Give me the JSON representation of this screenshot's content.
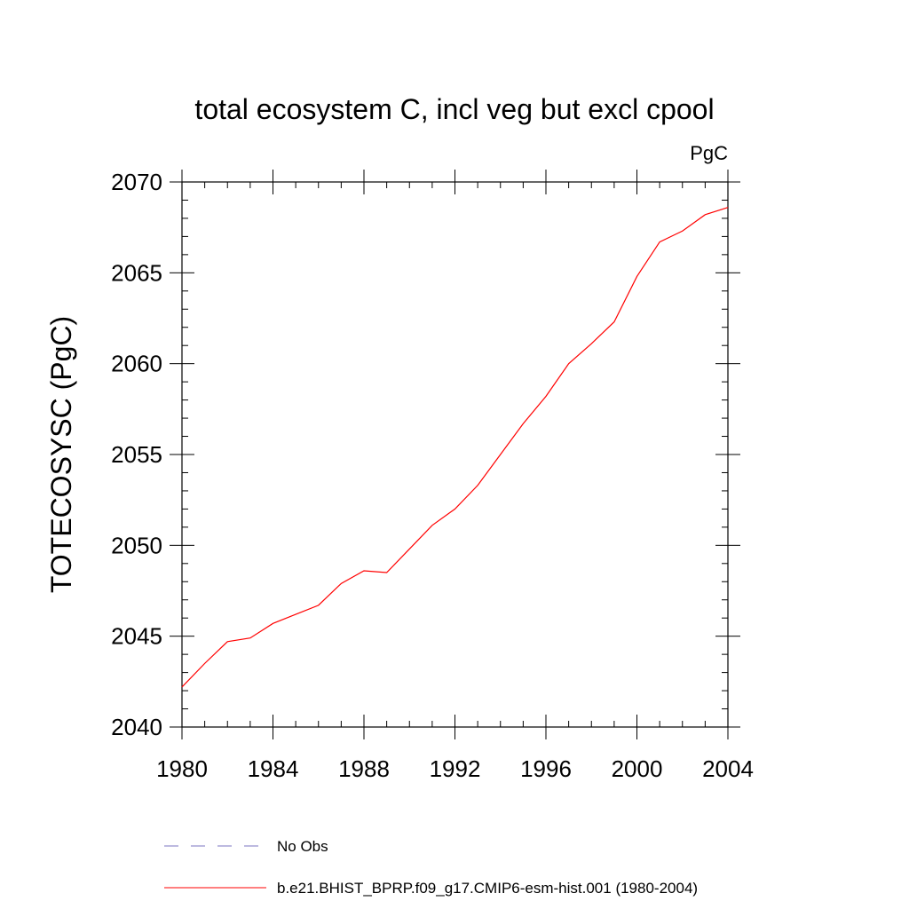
{
  "chart_data": {
    "type": "line",
    "title": "total ecosystem C, incl veg but excl cpool",
    "units": "PgC",
    "xlabel": "",
    "ylabel": "TOTECOSYSC  (PgC)",
    "xlim": [
      1980,
      2004
    ],
    "ylim": [
      2040,
      2070
    ],
    "xticks": [
      1980,
      1984,
      1988,
      1992,
      1996,
      2000,
      2004
    ],
    "yticks": [
      2040,
      2045,
      2050,
      2055,
      2060,
      2065,
      2070
    ],
    "x_minor_step": 1,
    "y_minor_step": 1,
    "grid": false,
    "legend_position": "bottom",
    "series": [
      {
        "name": "b.e21.BHIST_BPRP.f09_g17.CMIP6-esm-hist.001 (1980-2004)",
        "color": "#ff0000",
        "style": "solid",
        "x": [
          1980,
          1981,
          1982,
          1983,
          1984,
          1985,
          1986,
          1987,
          1988,
          1989,
          1990,
          1991,
          1992,
          1993,
          1994,
          1995,
          1996,
          1997,
          1998,
          1999,
          2000,
          2001,
          2002,
          2003,
          2004
        ],
        "y": [
          2042.2,
          2043.5,
          2044.7,
          2044.9,
          2045.7,
          2046.2,
          2046.7,
          2047.9,
          2048.6,
          2048.5,
          2049.8,
          2051.1,
          2052.0,
          2053.3,
          2055.0,
          2056.7,
          2058.2,
          2060.0,
          2061.1,
          2062.3,
          2064.8,
          2066.7,
          2067.3,
          2068.2,
          2068.6
        ]
      }
    ],
    "legend": [
      {
        "label": "No Obs",
        "color": "#7b76c2",
        "style": "dashed"
      },
      {
        "label": "b.e21.BHIST_BPRP.f09_g17.CMIP6-esm-hist.001 (1980-2004)",
        "color": "#ff0000",
        "style": "solid"
      }
    ]
  }
}
